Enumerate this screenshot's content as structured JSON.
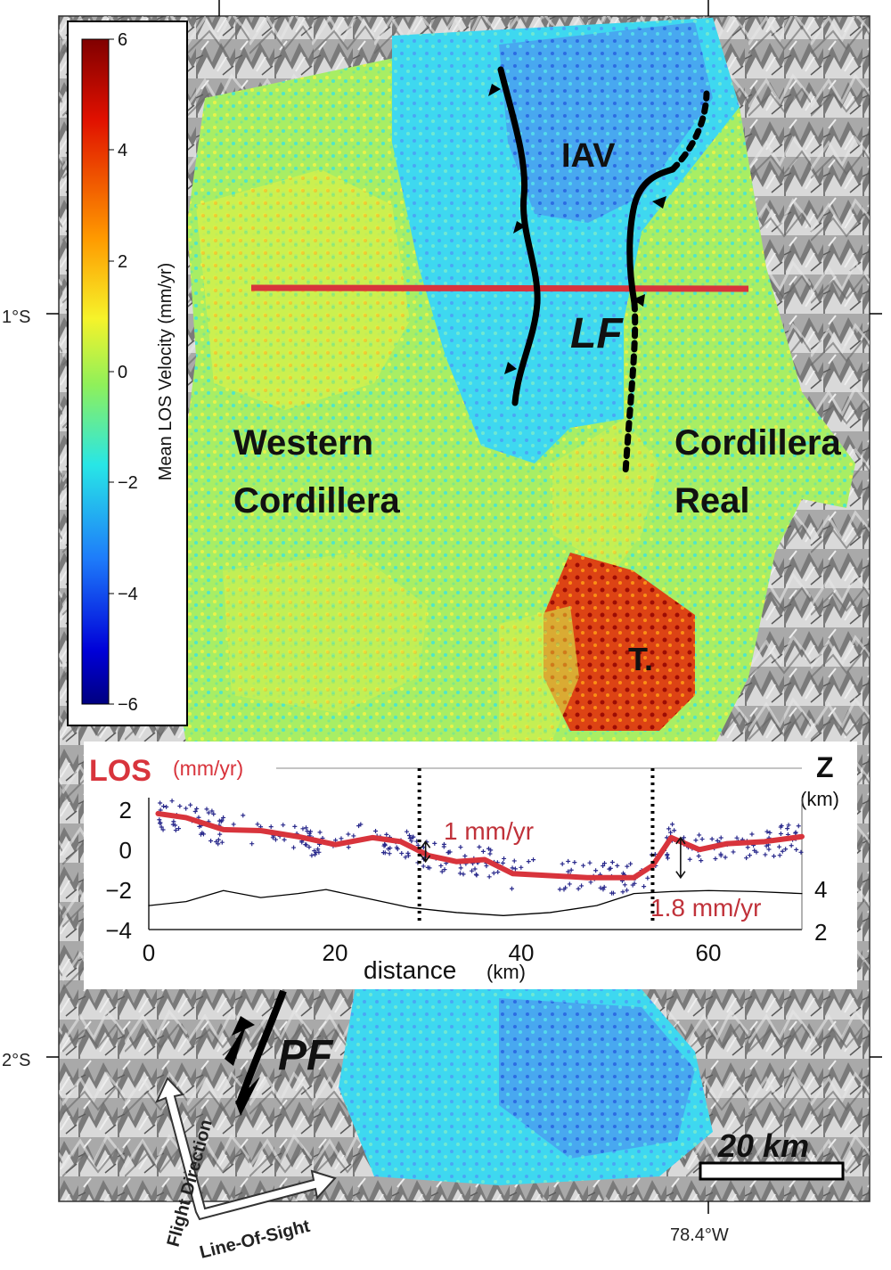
{
  "map": {
    "lat_labels": [
      "1°S",
      "2°S"
    ],
    "lon_label": "78.4°W",
    "colorbar": {
      "title": "Mean LOS Velocity (mm/yr)",
      "ticks": [
        "6",
        "4",
        "2",
        "0",
        "−2",
        "−4",
        "−6"
      ],
      "range": [
        -6,
        6
      ],
      "colormap": "jet"
    },
    "labels": {
      "iav": "IAV",
      "lf": "LF",
      "western_1": "Western",
      "western_2": "Cordillera",
      "real_1": "Cordillera",
      "real_2": "Real",
      "t": "T.",
      "pf": "PF"
    },
    "profile_line_color": "#d8343c",
    "fault_color": "#000000",
    "scale_bar": "20 km",
    "flight_direction": "Flight Direction",
    "line_of_sight": "Line-Of-Sight"
  },
  "profile": {
    "los_title": "LOS",
    "los_unit": "(mm/yr)",
    "z_title": "Z",
    "z_unit": "(km)",
    "xlabel_main": "distance",
    "xlabel_unit": "(km)",
    "x_ticks": [
      "0",
      "20",
      "40",
      "60"
    ],
    "y_ticks": [
      "2",
      "0",
      "−2",
      "−4"
    ],
    "z_ticks": [
      "4",
      "2"
    ],
    "annotation_1": "1 mm/yr",
    "annotation_2": "1.8 mm/yr"
  },
  "chart_data": {
    "type": "line",
    "xlabel": "distance (km)",
    "ylabel": "LOS (mm/yr)",
    "y2label": "Z (km)",
    "xlim": [
      0,
      70
    ],
    "ylim": [
      -4,
      2.6
    ],
    "series": [
      {
        "values": [
          [
            1,
            1.8
          ],
          [
            4,
            1.6
          ],
          [
            8,
            1.0
          ],
          [
            12,
            0.95
          ],
          [
            16,
            0.65
          ],
          [
            20,
            0.25
          ],
          [
            24,
            0.6
          ],
          [
            27,
            0.4
          ],
          [
            30,
            -0.3
          ],
          [
            33,
            -0.6
          ],
          [
            36,
            -0.5
          ],
          [
            39,
            -1.2
          ],
          [
            43,
            -1.3
          ],
          [
            47,
            -1.4
          ],
          [
            52,
            -1.4
          ],
          [
            54,
            -0.8
          ],
          [
            56,
            0.6
          ],
          [
            59,
            0.0
          ],
          [
            62,
            0.3
          ],
          [
            66,
            0.4
          ],
          [
            70,
            0.65
          ]
        ],
        "color": "#d8343c"
      },
      {
        "values": [
          [
            0,
            -2.8
          ],
          [
            4,
            -2.6
          ],
          [
            8,
            -2.05
          ],
          [
            12,
            -2.4
          ],
          [
            16,
            -2.2
          ],
          [
            19,
            -2.0
          ],
          [
            23,
            -2.4
          ],
          [
            28,
            -2.9
          ],
          [
            33,
            -3.15
          ],
          [
            38,
            -3.3
          ],
          [
            43,
            -3.15
          ],
          [
            48,
            -2.8
          ],
          [
            52,
            -2.2
          ],
          [
            56,
            -2.1
          ],
          [
            60,
            -2.05
          ],
          [
            65,
            -2.1
          ],
          [
            70,
            -2.2
          ]
        ],
        "color": "#000000"
      }
    ],
    "dashed_x": [
      29,
      54
    ],
    "step_1_range": [
      -0.6,
      0.4
    ],
    "step_2_range": [
      -1.4,
      0.6
    ]
  }
}
